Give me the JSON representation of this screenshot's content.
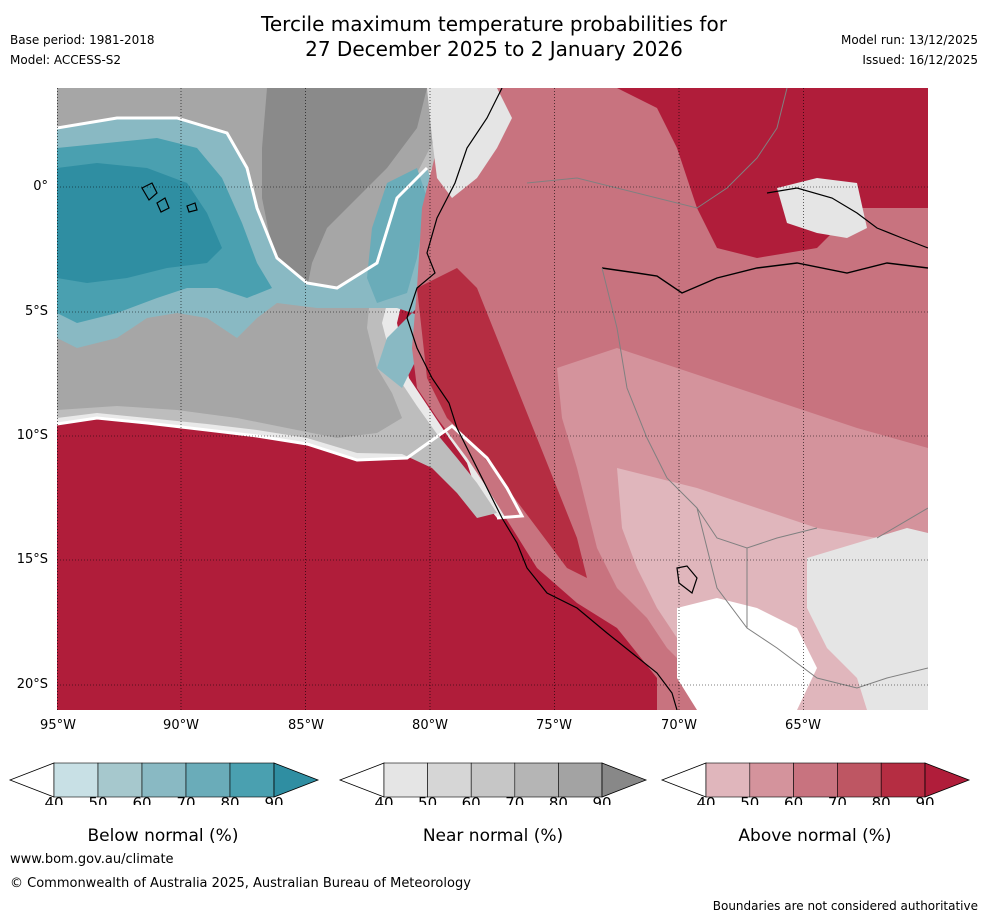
{
  "header": {
    "title_line1": "Tercile maximum temperature probabilities for",
    "title_line2": "27 December 2025 to 2 January 2026",
    "base_period": "Base period: 1981-2018",
    "model": "Model: ACCESS-S2",
    "model_run": "Model run: 13/12/2025",
    "issued": "Issued: 16/12/2025"
  },
  "map": {
    "lat_labels": [
      "0°",
      "5°S",
      "10°S",
      "15°S",
      "20°S"
    ],
    "lon_labels": [
      "95°W",
      "90°W",
      "85°W",
      "80°W",
      "75°W",
      "70°W",
      "65°W"
    ]
  },
  "colorbars": [
    {
      "title": "Below normal (%)",
      "ticks": [
        "40",
        "50",
        "60",
        "70",
        "80",
        "90"
      ],
      "colors": [
        "#c8e0e5",
        "#a6c8cd",
        "#89b9c3",
        "#6aacb9",
        "#4aa0b0",
        "#2f8ea2"
      ]
    },
    {
      "title": "Near normal (%)",
      "ticks": [
        "40",
        "50",
        "60",
        "70",
        "80",
        "90"
      ],
      "colors": [
        "#e5e5e5",
        "#d6d6d6",
        "#c6c6c6",
        "#b5b5b5",
        "#a3a3a3",
        "#888888"
      ]
    },
    {
      "title": "Above normal (%)",
      "ticks": [
        "40",
        "50",
        "60",
        "70",
        "80",
        "90"
      ],
      "colors": [
        "#e0b6bc",
        "#d4939c",
        "#c8737f",
        "#be5663",
        "#b52d42",
        "#b01d3a"
      ]
    }
  ],
  "footer": {
    "website": "www.bom.gov.au/climate",
    "copyright": "© Commonwealth of Australia 2025, Australian Bureau of Meteorology",
    "disclaimer": "Boundaries are not considered authoritative"
  }
}
